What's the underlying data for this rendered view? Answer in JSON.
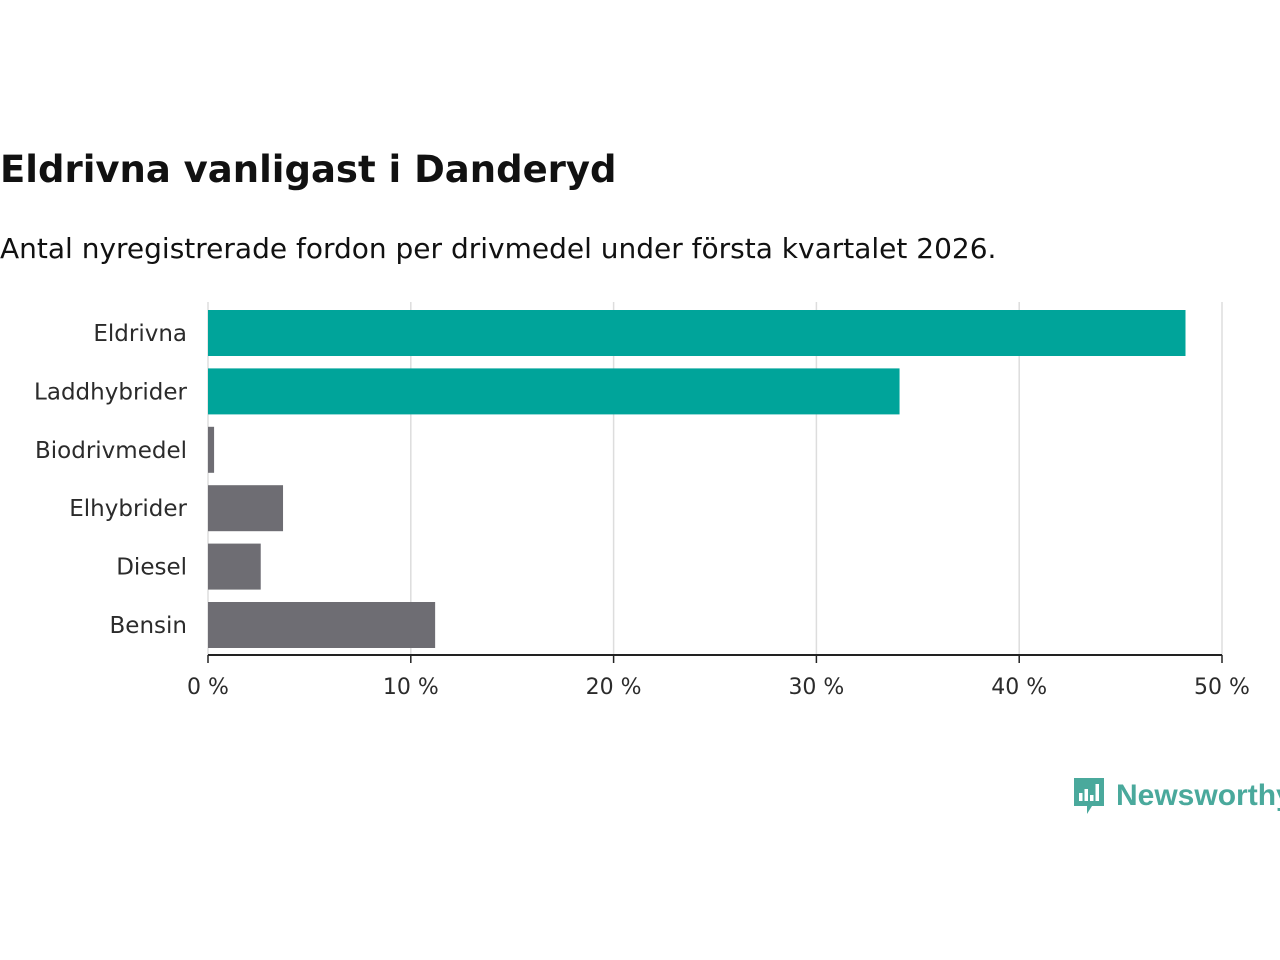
{
  "colors": {
    "highlight": "#00a49a",
    "neutral": "#6e6d73",
    "grid": "#dddddd",
    "axis": "#222222",
    "logo": "#4aa99c"
  },
  "logo": {
    "text": "Newsworthy",
    "icon": "bar-chart-speech-bubble-icon"
  },
  "chart_data": {
    "type": "bar",
    "orientation": "horizontal",
    "title": "Eldrivna vanligast i Danderyd",
    "subtitle": "Antal nyregistrerade fordon per drivmedel under första kvartalet 2026.",
    "categories": [
      "Eldrivna",
      "Laddhybrider",
      "Biodrivmedel",
      "Elhybrider",
      "Diesel",
      "Bensin"
    ],
    "values": [
      48.2,
      34.1,
      0.3,
      3.7,
      2.6,
      11.2
    ],
    "highlighted": [
      true,
      true,
      false,
      false,
      false,
      false
    ],
    "unit": "%",
    "xlim": [
      0,
      50
    ],
    "xticks": [
      0,
      10,
      20,
      30,
      40,
      50
    ],
    "xtick_labels": [
      "0 %",
      "10 %",
      "20 %",
      "30 %",
      "40 %",
      "50 %"
    ],
    "xlabel": "",
    "ylabel": "",
    "grid": true,
    "legend": "none"
  }
}
